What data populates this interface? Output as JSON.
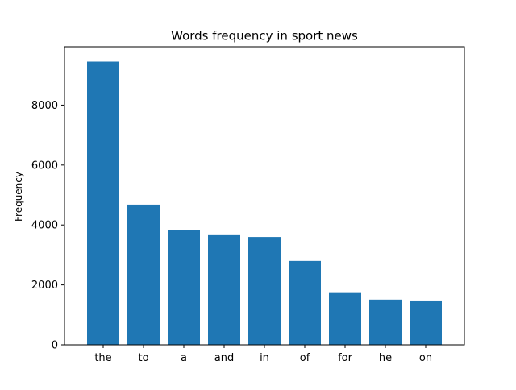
{
  "chart_data": {
    "type": "bar",
    "title": "Words frequency in sport news",
    "xlabel": "",
    "ylabel": "Frequency",
    "categories": [
      "the",
      "to",
      "a",
      "and",
      "in",
      "of",
      "for",
      "he",
      "on"
    ],
    "values": [
      9450,
      4680,
      3840,
      3660,
      3600,
      2800,
      1730,
      1510,
      1480
    ],
    "ylim": [
      0,
      9450
    ],
    "yticks": [
      0,
      2000,
      4000,
      6000,
      8000
    ],
    "ytick_labels": [
      "0",
      "2000",
      "4000",
      "6000",
      "8000"
    ],
    "grid": false,
    "legend": "none",
    "bar_color": "#1f77b4"
  }
}
